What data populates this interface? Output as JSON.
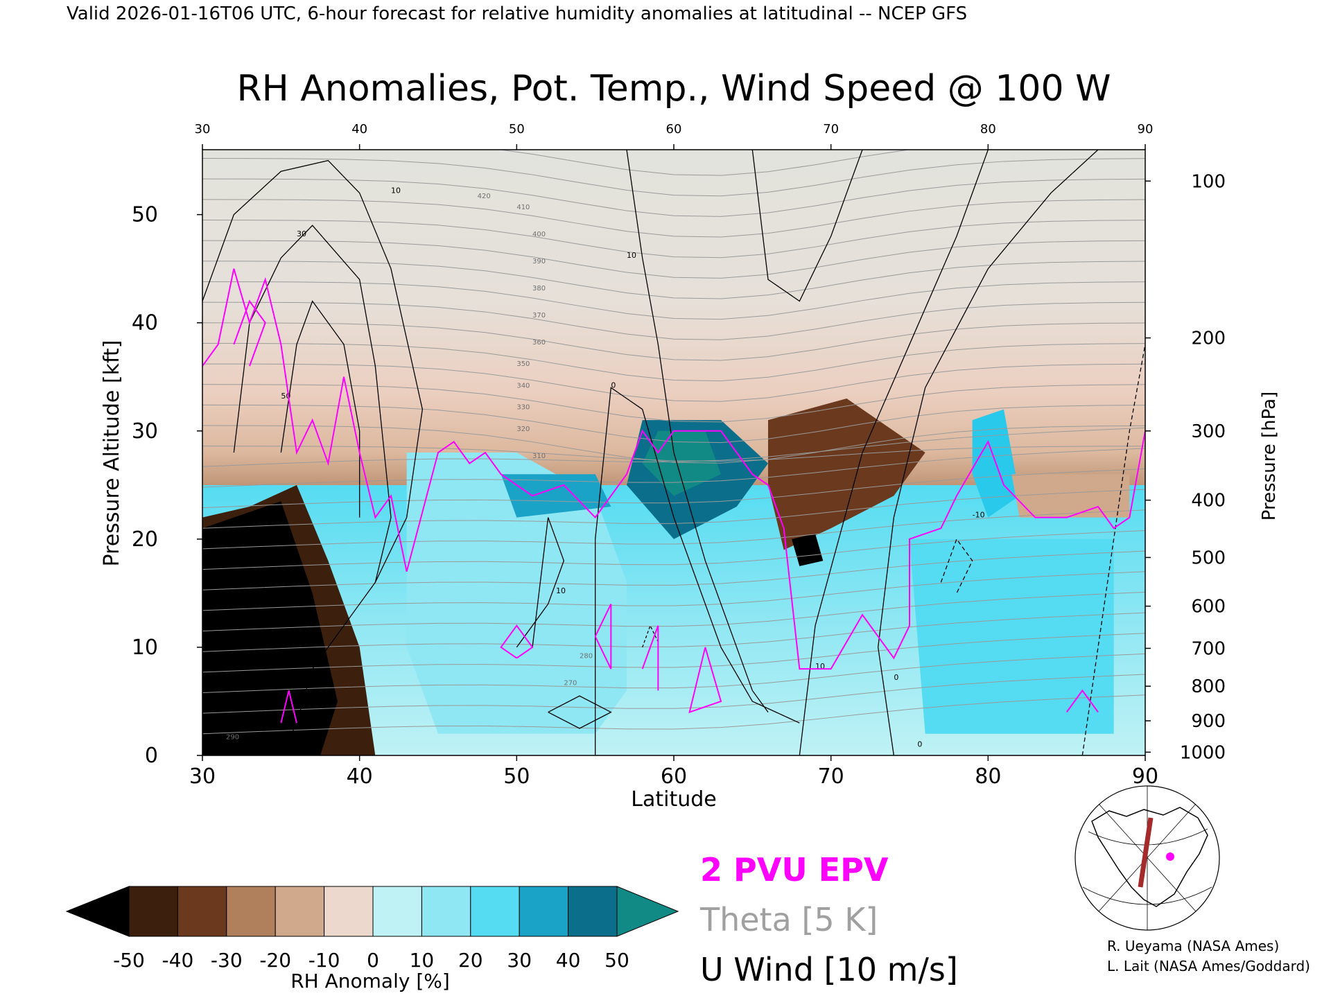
{
  "header": {
    "valid_line": "Valid 2026-01-16T06 UTC, 6-hour forecast for relative humidity anomalies at latitudinal -- NCEP GFS"
  },
  "chart_data": {
    "type": "heatmap",
    "title": "RH Anomalies, Pot. Temp., Wind Speed @ 100 W",
    "xlabel": "Latitude",
    "ylabel": "Pressure Altitude [kft]",
    "y2label": "Pressure [hPa]",
    "xlim": [
      30,
      90
    ],
    "ylim": [
      0,
      56
    ],
    "x_ticks": [
      "30",
      "40",
      "50",
      "60",
      "70",
      "80",
      "90"
    ],
    "y_ticks": [
      "0",
      "10",
      "20",
      "30",
      "40",
      "50"
    ],
    "pressure_ticks": [
      {
        "label": "100",
        "kft": 53.1
      },
      {
        "label": "200",
        "kft": 38.6
      },
      {
        "label": "300",
        "kft": 30.0
      },
      {
        "label": "400",
        "kft": 23.6
      },
      {
        "label": "500",
        "kft": 18.3
      },
      {
        "label": "600",
        "kft": 13.8
      },
      {
        "label": "700",
        "kft": 9.9
      },
      {
        "label": "800",
        "kft": 6.4
      },
      {
        "label": "900",
        "kft": 3.2
      },
      {
        "label": "1000",
        "kft": 0.3
      }
    ],
    "colorbar": {
      "label": "RH Anomaly [%]",
      "ticks": [
        "-50",
        "-40",
        "-30",
        "-20",
        "-10",
        "0",
        "10",
        "20",
        "30",
        "40",
        "50"
      ],
      "colors": [
        "#000000",
        "#3d1f0d",
        "#6b3a1e",
        "#8f5634",
        "#b0805c",
        "#d0a98c",
        "#ecd8cc",
        "#e6f4f2",
        "#bff2f5",
        "#8fe7f3",
        "#55dcf2",
        "#29c9ec",
        "#1aa2c7",
        "#0b6f8c",
        "#118a86"
      ]
    },
    "legend": {
      "epv": "2 PVU EPV",
      "theta": "Theta [5 K]",
      "uwind": "U Wind [10 m/s]",
      "colors": {
        "epv": "#ff00ff",
        "theta": "#a0a0a0",
        "uwind": "#000000"
      }
    },
    "theta_labels": [
      "290",
      "280",
      "270",
      "310",
      "320",
      "330",
      "340",
      "350",
      "360",
      "370",
      "380",
      "390",
      "400",
      "410",
      "420"
    ],
    "uwind_labels": [
      "10",
      "30",
      "50",
      "0",
      "0",
      "10",
      "10",
      "10",
      "-10",
      "0"
    ]
  },
  "credits": {
    "line1": "R. Ueyama (NASA Ames)",
    "line2": "L. Lait (NASA Ames/Goddard)"
  }
}
